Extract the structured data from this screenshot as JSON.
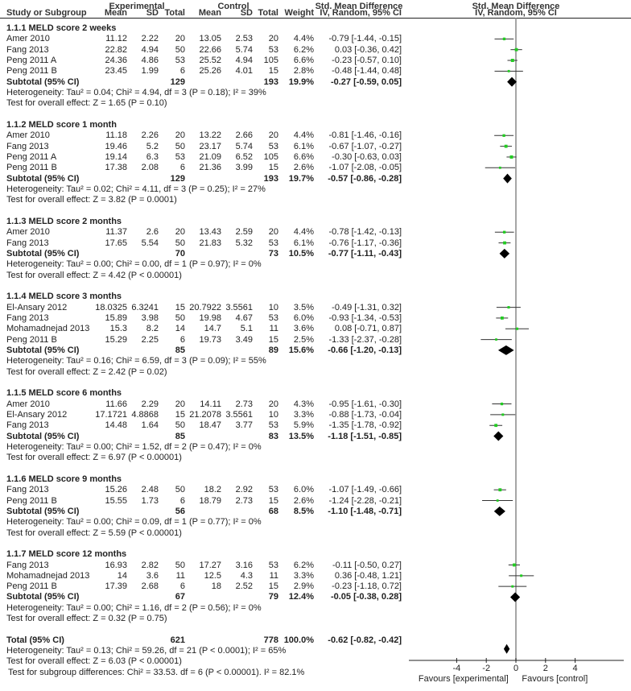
{
  "headers": {
    "experimental": "Experimental",
    "control": "Control",
    "smd_table": "Std. Mean Difference",
    "smd_plot": "Std. Mean Difference",
    "study": "Study or Subgroup",
    "mean": "Mean",
    "sd": "SD",
    "total": "Total",
    "weight": "Weight",
    "method_table": "IV, Random, 95% CI",
    "method_plot": "IV, Random, 95% CI"
  },
  "chart_data": {
    "type": "forest",
    "xlim": [
      -4,
      4
    ],
    "xticks": [
      "-4",
      "-2",
      "0",
      "2",
      "4"
    ],
    "xlabel_left": "Favours [experimental]",
    "xlabel_right": "Favours [control]",
    "colors": {
      "study_marker": "#22cc22",
      "diamond": "#000000",
      "ci_line": "#333333",
      "zero_line": "#888888"
    },
    "groups": [
      {
        "title": "1.1.1 MELD score 2 weeks",
        "studies": [
          {
            "name": "Amer 2010",
            "e_mean": "11.12",
            "e_sd": "2.22",
            "e_n": "20",
            "c_mean": "13.05",
            "c_sd": "2.53",
            "c_n": "20",
            "weight": "4.4%",
            "ci": "-0.79 [-1.44, -0.15]",
            "smd": -0.79,
            "lo": -1.44,
            "hi": -0.15
          },
          {
            "name": "Fang 2013",
            "e_mean": "22.82",
            "e_sd": "4.94",
            "e_n": "50",
            "c_mean": "22.66",
            "c_sd": "5.74",
            "c_n": "53",
            "weight": "6.2%",
            "ci": "0.03 [-0.36, 0.42]",
            "smd": 0.03,
            "lo": -0.36,
            "hi": 0.42
          },
          {
            "name": "Peng 2011 A",
            "e_mean": "24.36",
            "e_sd": "4.86",
            "e_n": "53",
            "c_mean": "25.52",
            "c_sd": "4.94",
            "c_n": "105",
            "weight": "6.6%",
            "ci": "-0.23 [-0.57, 0.10]",
            "smd": -0.23,
            "lo": -0.57,
            "hi": 0.1
          },
          {
            "name": "Peng 2011 B",
            "e_mean": "23.45",
            "e_sd": "1.99",
            "e_n": "6",
            "c_mean": "25.26",
            "c_sd": "4.01",
            "c_n": "15",
            "weight": "2.8%",
            "ci": "-0.48 [-1.44, 0.48]",
            "smd": -0.48,
            "lo": -1.44,
            "hi": 0.48
          }
        ],
        "subtotal": {
          "label": "Subtotal (95% CI)",
          "e_n": "129",
          "c_n": "193",
          "weight": "19.9%",
          "ci": "-0.27 [-0.59, 0.05]",
          "smd": -0.27,
          "lo": -0.59,
          "hi": 0.05
        },
        "heterogeneity": "Heterogeneity: Tau² = 0.04; Chi² = 4.94, df = 3 (P = 0.18); I² = 39%",
        "overall": "Test for overall effect: Z = 1.65 (P = 0.10)"
      },
      {
        "title": "1.1.2 MELD score 1 month",
        "studies": [
          {
            "name": "Amer 2010",
            "e_mean": "11.18",
            "e_sd": "2.26",
            "e_n": "20",
            "c_mean": "13.22",
            "c_sd": "2.66",
            "c_n": "20",
            "weight": "4.4%",
            "ci": "-0.81 [-1.46, -0.16]",
            "smd": -0.81,
            "lo": -1.46,
            "hi": -0.16
          },
          {
            "name": "Fang 2013",
            "e_mean": "19.46",
            "e_sd": "5.2",
            "e_n": "50",
            "c_mean": "23.17",
            "c_sd": "5.74",
            "c_n": "53",
            "weight": "6.1%",
            "ci": "-0.67 [-1.07, -0.27]",
            "smd": -0.67,
            "lo": -1.07,
            "hi": -0.27
          },
          {
            "name": "Peng 2011 A",
            "e_mean": "19.14",
            "e_sd": "6.3",
            "e_n": "53",
            "c_mean": "21.09",
            "c_sd": "6.52",
            "c_n": "105",
            "weight": "6.6%",
            "ci": "-0.30 [-0.63, 0.03]",
            "smd": -0.3,
            "lo": -0.63,
            "hi": 0.03
          },
          {
            "name": "Peng 2011 B",
            "e_mean": "17.38",
            "e_sd": "2.08",
            "e_n": "6",
            "c_mean": "21.36",
            "c_sd": "3.99",
            "c_n": "15",
            "weight": "2.6%",
            "ci": "-1.07 [-2.08, -0.05]",
            "smd": -1.07,
            "lo": -2.08,
            "hi": -0.05
          }
        ],
        "subtotal": {
          "label": "Subtotal (95% CI)",
          "e_n": "129",
          "c_n": "193",
          "weight": "19.7%",
          "ci": "-0.57 [-0.86, -0.28]",
          "smd": -0.57,
          "lo": -0.86,
          "hi": -0.28
        },
        "heterogeneity": "Heterogeneity: Tau² = 0.02; Chi² = 4.11, df = 3 (P = 0.25); I² = 27%",
        "overall": "Test for overall effect: Z = 3.82 (P = 0.0001)"
      },
      {
        "title": "1.1.3 MELD score 2 months",
        "studies": [
          {
            "name": "Amer 2010",
            "e_mean": "11.37",
            "e_sd": "2.6",
            "e_n": "20",
            "c_mean": "13.43",
            "c_sd": "2.59",
            "c_n": "20",
            "weight": "4.4%",
            "ci": "-0.78 [-1.42, -0.13]",
            "smd": -0.78,
            "lo": -1.42,
            "hi": -0.13
          },
          {
            "name": "Fang 2013",
            "e_mean": "17.65",
            "e_sd": "5.54",
            "e_n": "50",
            "c_mean": "21.83",
            "c_sd": "5.32",
            "c_n": "53",
            "weight": "6.1%",
            "ci": "-0.76 [-1.17, -0.36]",
            "smd": -0.76,
            "lo": -1.17,
            "hi": -0.36
          }
        ],
        "subtotal": {
          "label": "Subtotal (95% CI)",
          "e_n": "70",
          "c_n": "73",
          "weight": "10.5%",
          "ci": "-0.77 [-1.11, -0.43]",
          "smd": -0.77,
          "lo": -1.11,
          "hi": -0.43
        },
        "heterogeneity": "Heterogeneity: Tau² = 0.00; Chi² = 0.00, df = 1 (P = 0.97); I² = 0%",
        "overall": "Test for overall effect: Z = 4.42 (P < 0.00001)"
      },
      {
        "title": "1.1.4 MELD score 3 months",
        "studies": [
          {
            "name": "El-Ansary 2012",
            "e_mean": "18.0325",
            "e_sd": "6.3241",
            "e_n": "15",
            "c_mean": "20.7922",
            "c_sd": "3.5561",
            "c_n": "10",
            "weight": "3.5%",
            "ci": "-0.49 [-1.31, 0.32]",
            "smd": -0.49,
            "lo": -1.31,
            "hi": 0.32
          },
          {
            "name": "Fang 2013",
            "e_mean": "15.89",
            "e_sd": "3.98",
            "e_n": "50",
            "c_mean": "19.98",
            "c_sd": "4.67",
            "c_n": "53",
            "weight": "6.0%",
            "ci": "-0.93 [-1.34, -0.53]",
            "smd": -0.93,
            "lo": -1.34,
            "hi": -0.53
          },
          {
            "name": "Mohamadnejad 2013",
            "e_mean": "15.3",
            "e_sd": "8.2",
            "e_n": "14",
            "c_mean": "14.7",
            "c_sd": "5.1",
            "c_n": "11",
            "weight": "3.6%",
            "ci": "0.08 [-0.71, 0.87]",
            "smd": 0.08,
            "lo": -0.71,
            "hi": 0.87
          },
          {
            "name": "Peng 2011 B",
            "e_mean": "15.29",
            "e_sd": "2.25",
            "e_n": "6",
            "c_mean": "19.73",
            "c_sd": "3.49",
            "c_n": "15",
            "weight": "2.5%",
            "ci": "-1.33 [-2.37, -0.28]",
            "smd": -1.33,
            "lo": -2.37,
            "hi": -0.28
          }
        ],
        "subtotal": {
          "label": "Subtotal (95% CI)",
          "e_n": "85",
          "c_n": "89",
          "weight": "15.6%",
          "ci": "-0.66 [-1.20, -0.13]",
          "smd": -0.66,
          "lo": -1.2,
          "hi": -0.13
        },
        "heterogeneity": "Heterogeneity: Tau² = 0.16; Chi² = 6.59, df = 3 (P = 0.09); I² = 55%",
        "overall": "Test for overall effect: Z = 2.42 (P = 0.02)"
      },
      {
        "title": "1.1.5 MELD score 6 months",
        "studies": [
          {
            "name": "Amer 2010",
            "e_mean": "11.66",
            "e_sd": "2.29",
            "e_n": "20",
            "c_mean": "14.11",
            "c_sd": "2.73",
            "c_n": "20",
            "weight": "4.3%",
            "ci": "-0.95 [-1.61, -0.30]",
            "smd": -0.95,
            "lo": -1.61,
            "hi": -0.3
          },
          {
            "name": "El-Ansary 2012",
            "e_mean": "17.1721",
            "e_sd": "4.8868",
            "e_n": "15",
            "c_mean": "21.2078",
            "c_sd": "3.5561",
            "c_n": "10",
            "weight": "3.3%",
            "ci": "-0.88 [-1.73, -0.04]",
            "smd": -0.88,
            "lo": -1.73,
            "hi": -0.04
          },
          {
            "name": "Fang 2013",
            "e_mean": "14.48",
            "e_sd": "1.64",
            "e_n": "50",
            "c_mean": "18.47",
            "c_sd": "3.77",
            "c_n": "53",
            "weight": "5.9%",
            "ci": "-1.35 [-1.78, -0.92]",
            "smd": -1.35,
            "lo": -1.78,
            "hi": -0.92
          }
        ],
        "subtotal": {
          "label": "Subtotal (95% CI)",
          "e_n": "85",
          "c_n": "83",
          "weight": "13.5%",
          "ci": "-1.18 [-1.51, -0.85]",
          "smd": -1.18,
          "lo": -1.51,
          "hi": -0.85
        },
        "heterogeneity": "Heterogeneity: Tau² = 0.00; Chi² = 1.52, df = 2 (P = 0.47); I² = 0%",
        "overall": "Test for overall effect: Z = 6.97 (P < 0.00001)"
      },
      {
        "title": "1.1.6 MELD score 9 months",
        "studies": [
          {
            "name": "Fang 2013",
            "e_mean": "15.26",
            "e_sd": "2.48",
            "e_n": "50",
            "c_mean": "18.2",
            "c_sd": "2.92",
            "c_n": "53",
            "weight": "6.0%",
            "ci": "-1.07 [-1.49, -0.66]",
            "smd": -1.07,
            "lo": -1.49,
            "hi": -0.66
          },
          {
            "name": "Peng 2011 B",
            "e_mean": "15.55",
            "e_sd": "1.73",
            "e_n": "6",
            "c_mean": "18.79",
            "c_sd": "2.73",
            "c_n": "15",
            "weight": "2.6%",
            "ci": "-1.24 [-2.28, -0.21]",
            "smd": -1.24,
            "lo": -2.28,
            "hi": -0.21
          }
        ],
        "subtotal": {
          "label": "Subtotal (95% CI)",
          "e_n": "56",
          "c_n": "68",
          "weight": "8.5%",
          "ci": "-1.10 [-1.48, -0.71]",
          "smd": -1.1,
          "lo": -1.48,
          "hi": -0.71
        },
        "heterogeneity": "Heterogeneity: Tau² = 0.00; Chi² = 0.09, df = 1 (P = 0.77); I² = 0%",
        "overall": "Test for overall effect: Z = 5.59 (P < 0.00001)"
      },
      {
        "title": "1.1.7 MELD score 12 months",
        "studies": [
          {
            "name": "Fang 2013",
            "e_mean": "16.93",
            "e_sd": "2.82",
            "e_n": "50",
            "c_mean": "17.27",
            "c_sd": "3.16",
            "c_n": "53",
            "weight": "6.2%",
            "ci": "-0.11 [-0.50, 0.27]",
            "smd": -0.11,
            "lo": -0.5,
            "hi": 0.27
          },
          {
            "name": "Mohamadnejad 2013",
            "e_mean": "14",
            "e_sd": "3.6",
            "e_n": "11",
            "c_mean": "12.5",
            "c_sd": "4.3",
            "c_n": "11",
            "weight": "3.3%",
            "ci": "0.36 [-0.48, 1.21]",
            "smd": 0.36,
            "lo": -0.48,
            "hi": 1.21
          },
          {
            "name": "Peng 2011 B",
            "e_mean": "17.39",
            "e_sd": "2.68",
            "e_n": "6",
            "c_mean": "18",
            "c_sd": "2.52",
            "c_n": "15",
            "weight": "2.9%",
            "ci": "-0.23 [-1.18, 0.72]",
            "smd": -0.23,
            "lo": -1.18,
            "hi": 0.72
          }
        ],
        "subtotal": {
          "label": "Subtotal (95% CI)",
          "e_n": "67",
          "c_n": "79",
          "weight": "12.4%",
          "ci": "-0.05 [-0.38, 0.28]",
          "smd": -0.05,
          "lo": -0.38,
          "hi": 0.28
        },
        "heterogeneity": "Heterogeneity: Tau² = 0.00; Chi² = 1.16, df = 2 (P = 0.56); I² = 0%",
        "overall": "Test for overall effect: Z = 0.32 (P = 0.75)"
      }
    ],
    "total": {
      "label": "Total (95% CI)",
      "e_n": "621",
      "c_n": "778",
      "weight": "100.0%",
      "ci": "-0.62 [-0.82, -0.42]",
      "smd": -0.62,
      "lo": -0.82,
      "hi": -0.42,
      "heterogeneity": "Heterogeneity: Tau² = 0.13; Chi² = 59.26, df = 21 (P < 0.0001); I² = 65%",
      "overall": "Test for overall effect: Z = 6.03 (P < 0.00001)",
      "subgroup": "Test for subgroup differences: Chi² = 33.53. df = 6 (P < 0.00001). I² = 82.1%"
    }
  }
}
